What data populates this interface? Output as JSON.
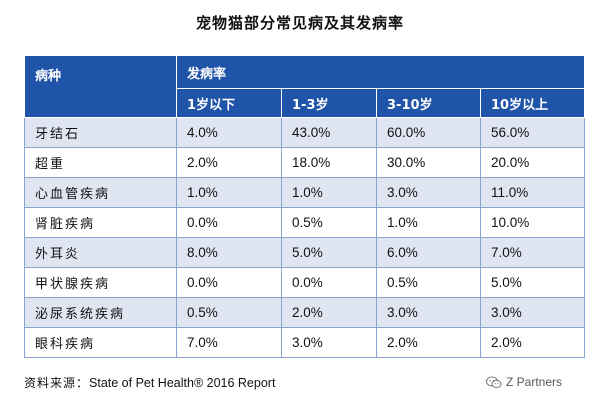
{
  "chart_data": {
    "type": "table",
    "title": "宠物猫部分常见病及其发病率",
    "header": {
      "disease": "病种",
      "rate": "发病率",
      "age_groups": [
        "1岁以下",
        "1-3岁",
        "3-10岁",
        "10岁以上"
      ]
    },
    "rows": [
      {
        "disease": "牙结石",
        "values": [
          "4.0%",
          "43.0%",
          "60.0%",
          "56.0%"
        ]
      },
      {
        "disease": "超重",
        "values": [
          "2.0%",
          "18.0%",
          "30.0%",
          "20.0%"
        ]
      },
      {
        "disease": "心血管疾病",
        "values": [
          "1.0%",
          "1.0%",
          "3.0%",
          "11.0%"
        ]
      },
      {
        "disease": "肾脏疾病",
        "values": [
          "0.0%",
          "0.5%",
          "1.0%",
          "10.0%"
        ]
      },
      {
        "disease": "外耳炎",
        "values": [
          "8.0%",
          "5.0%",
          "6.0%",
          "7.0%"
        ]
      },
      {
        "disease": "甲状腺疾病",
        "values": [
          "0.0%",
          "0.0%",
          "0.5%",
          "5.0%"
        ]
      },
      {
        "disease": "泌尿系统疾病",
        "values": [
          "0.5%",
          "2.0%",
          "3.0%",
          "3.0%"
        ]
      },
      {
        "disease": "眼科疾病",
        "values": [
          "7.0%",
          "3.0%",
          "2.0%",
          "2.0%"
        ]
      }
    ]
  },
  "source": {
    "label": "资料来源：",
    "text": "State of Pet Health® 2016 Report"
  },
  "brand": {
    "icon": "wechat-icon",
    "text": "Z Partners"
  },
  "colors": {
    "header_bg": "#1f54a8",
    "row_stripe": "#dfe6f2",
    "border": "#8aa4cf"
  }
}
